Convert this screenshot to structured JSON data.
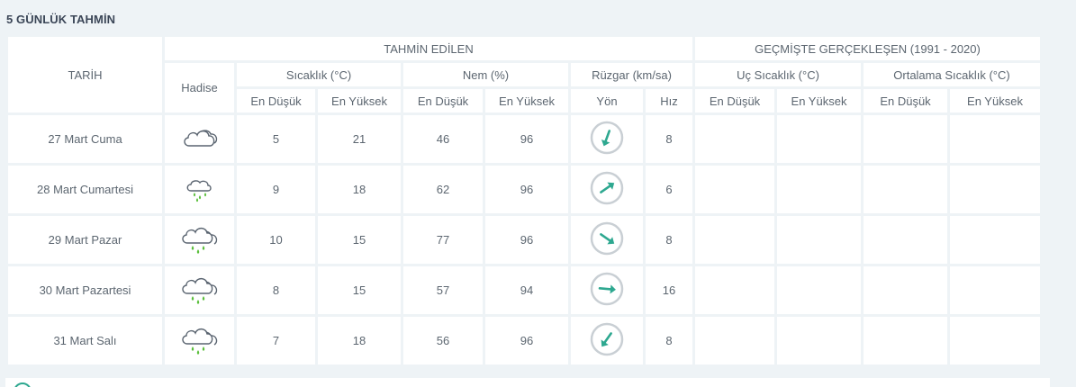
{
  "section_title": "5 GÜNLÜK TAHMİN",
  "headers": {
    "tarih": "TARİH",
    "tahmin_edilen": "TAHMİN EDİLEN",
    "gecmiste": "GEÇMİŞTE GERÇEKLEŞEN (1991 - 2020)",
    "hadise": "Hadise",
    "sicaklik": "Sıcaklık (°C)",
    "nem": "Nem (%)",
    "ruzgar": "Rüzgar (km/sa)",
    "uc_sicaklik": "Uç Sıcaklık (°C)",
    "ortalama_sicaklik": "Ortalama Sıcaklık (°C)",
    "en_dusuk": "En Düşük",
    "en_yuksek": "En Yüksek",
    "yon": "Yön",
    "hiz": "Hız"
  },
  "colors": {
    "temp_low": "#2e8fb5",
    "temp_high": "#e0485a",
    "hum_low": "#e0a12f",
    "hum_high": "#7d6fa1",
    "wind": "#2ea890",
    "rain": "#5bbf3c"
  },
  "rows": [
    {
      "date": "27 Mart Cuma",
      "icon": "cloudy-icon",
      "temp_low": "5",
      "temp_high": "21",
      "hum_low": "46",
      "hum_high": "96",
      "wind_dir_deg": 200,
      "wind_speed": "8"
    },
    {
      "date": "28 Mart Cumartesi",
      "icon": "rain-icon",
      "temp_low": "9",
      "temp_high": "18",
      "hum_low": "62",
      "hum_high": "96",
      "wind_dir_deg": 55,
      "wind_speed": "6"
    },
    {
      "date": "29 Mart Pazar",
      "icon": "cloud-rain-icon",
      "temp_low": "10",
      "temp_high": "15",
      "hum_low": "77",
      "hum_high": "96",
      "wind_dir_deg": 125,
      "wind_speed": "8"
    },
    {
      "date": "30 Mart Pazartesi",
      "icon": "cloud-rain-icon",
      "temp_low": "8",
      "temp_high": "15",
      "hum_low": "57",
      "hum_high": "94",
      "wind_dir_deg": 95,
      "wind_speed": "16"
    },
    {
      "date": "31 Mart Salı",
      "icon": "cloud-rain-icon",
      "temp_low": "7",
      "temp_high": "18",
      "hum_low": "56",
      "hum_high": "96",
      "wind_dir_deg": 215,
      "wind_speed": "8"
    }
  ]
}
